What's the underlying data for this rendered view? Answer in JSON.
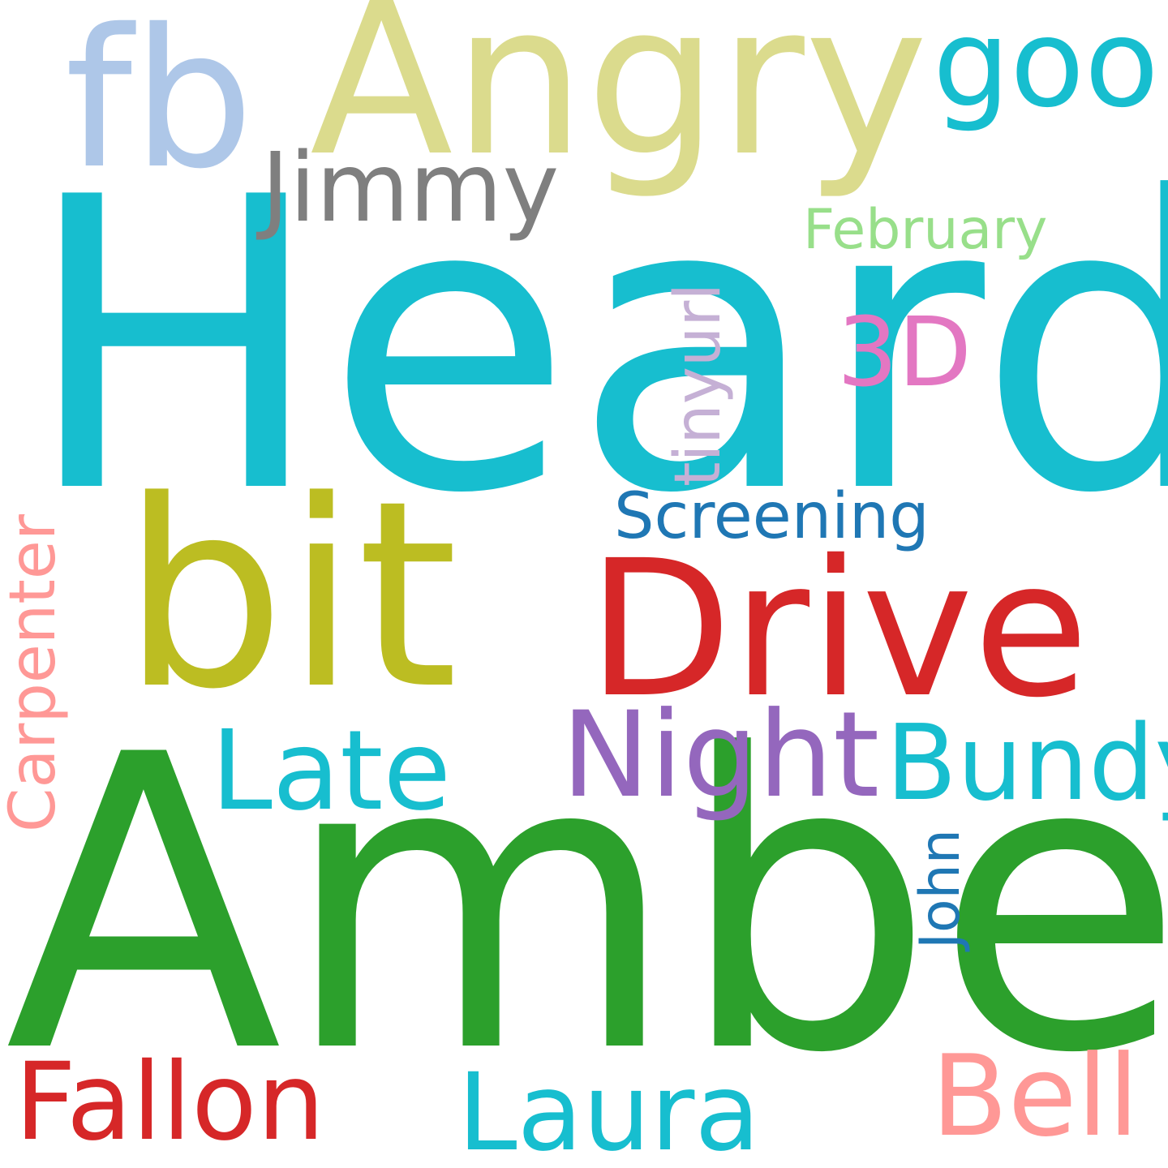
{
  "word_cloud": {
    "background": "#ffffff",
    "words": [
      {
        "text": "Heard",
        "color": "#17becf",
        "orientation": "horizontal"
      },
      {
        "text": "Amber",
        "color": "#2ca02c",
        "orientation": "horizontal"
      },
      {
        "text": "Angry",
        "color": "#dbdb8d",
        "orientation": "horizontal"
      },
      {
        "text": "bit",
        "color": "#bcbd22",
        "orientation": "horizontal"
      },
      {
        "text": "Drive",
        "color": "#d62728",
        "orientation": "horizontal"
      },
      {
        "text": "fb",
        "color": "#aec7e8",
        "orientation": "horizontal"
      },
      {
        "text": "goo",
        "color": "#17becf",
        "orientation": "horizontal"
      },
      {
        "text": "Jimmy",
        "color": "#7f7f7f",
        "orientation": "horizontal"
      },
      {
        "text": "February",
        "color": "#98df8a",
        "orientation": "horizontal"
      },
      {
        "text": "3D",
        "color": "#e377c2",
        "orientation": "horizontal"
      },
      {
        "text": "tinyurl",
        "color": "#c5b0d5",
        "orientation": "vertical"
      },
      {
        "text": "Screening",
        "color": "#1f77b4",
        "orientation": "horizontal"
      },
      {
        "text": "Late",
        "color": "#17becf",
        "orientation": "horizontal"
      },
      {
        "text": "Night",
        "color": "#9467bd",
        "orientation": "horizontal"
      },
      {
        "text": "Bundy",
        "color": "#17becf",
        "orientation": "horizontal"
      },
      {
        "text": "Carpenter",
        "color": "#ff9896",
        "orientation": "vertical"
      },
      {
        "text": "John",
        "color": "#1f77b4",
        "orientation": "vertical"
      },
      {
        "text": "Fallon",
        "color": "#d62728",
        "orientation": "horizontal"
      },
      {
        "text": "Laura",
        "color": "#17becf",
        "orientation": "horizontal"
      },
      {
        "text": "Bell",
        "color": "#ff9896",
        "orientation": "horizontal"
      }
    ]
  }
}
